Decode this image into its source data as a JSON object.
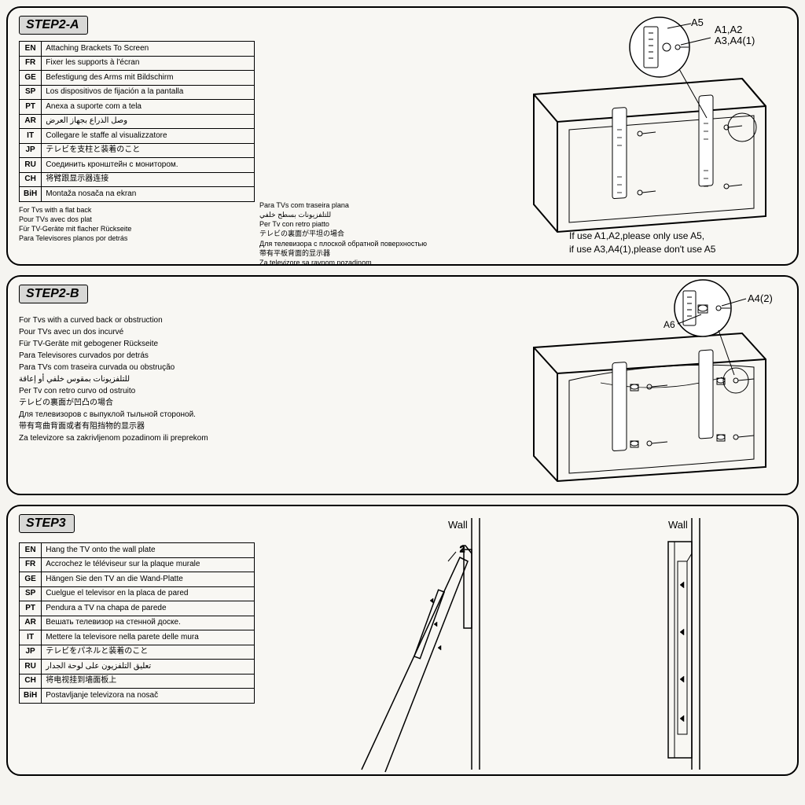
{
  "step2a": {
    "label": "STEP2-A",
    "rows": [
      {
        "code": "EN",
        "text": "Attaching Brackets To Screen"
      },
      {
        "code": "FR",
        "text": "Fixer les supports à l'écran"
      },
      {
        "code": "GE",
        "text": "Befestigung des Arms mit Bildschirm"
      },
      {
        "code": "SP",
        "text": "Los dispositivos de fijación a la pantalla"
      },
      {
        "code": "PT",
        "text": "Anexa a suporte com a tela"
      },
      {
        "code": "AR",
        "text": "وصل الذراع بجهاز العرض"
      },
      {
        "code": "IT",
        "text": "Collegare le staffe al visualizzatore"
      },
      {
        "code": "JP",
        "text": "テレビを支柱と装着のこと"
      },
      {
        "code": "RU",
        "text": "Соединить кронштейн с монитором."
      },
      {
        "code": "CH",
        "text": "将臂跟显示器连接"
      },
      {
        "code": "BiH",
        "text": "Montaža nosača na ekran"
      }
    ],
    "notes_col1": [
      "For Tvs with a flat back",
      "Pour TVs avec dos plat",
      "Für TV-Geräte mit flacher Rückseite",
      "Para Televisores planos por detrás"
    ],
    "notes_col2": [
      "Para TVs com traseira plana",
      "للتلفزيونات بسطح خلفي",
      "Per Tv con retro piatto",
      "テレビの裏面が平坦の場合",
      "Для телевизора с плоской обратной поверхностью",
      "带有平板背面的显示器",
      "Za televizore sa ravnom pozadinom"
    ],
    "labels": {
      "a5": "A5",
      "a12": "A1,A2",
      "a34": "A3,A4(1)"
    },
    "warn1": "If use A1,A2,please only use A5,",
    "warn2": "if use A3,A4(1),please don't use A5"
  },
  "step2b": {
    "label": "STEP2-B",
    "notes": [
      "For Tvs with a curved back or obstruction",
      "Pour TVs avec un dos incurvé",
      "Für TV-Geräte mit gebogener Rückseite",
      "Para Televisores curvados por detrás",
      "Para TVs com traseira curvada ou obstrução",
      "للتلفزيونات بمقوس خلفي أو إعاقة",
      "Per Tv con retro curvo od ostruito",
      "テレビの裏面が凹凸の場合",
      "Для телевизоров с выпуклой тыльной стороной.",
      "带有弯曲背面或者有阻挡物的显示器",
      "Za televizore sa zakrivljenom pozadinom ili preprekom"
    ],
    "labels": {
      "a42": "A4(2)",
      "a6": "A6"
    }
  },
  "step3": {
    "label": "STEP3",
    "rows": [
      {
        "code": "EN",
        "text": "Hang the TV onto the wall plate"
      },
      {
        "code": "FR",
        "text": "Accrochez le téléviseur sur la plaque murale"
      },
      {
        "code": "GE",
        "text": "Hängen Sie den TV an die Wand-Platte"
      },
      {
        "code": "SP",
        "text": "Cuelgue el televisor en la placa de pared"
      },
      {
        "code": "PT",
        "text": "Pendura a TV na chapa de parede"
      },
      {
        "code": "AR",
        "text": "Вешать телевизор на стенной доске."
      },
      {
        "code": "IT",
        "text": "Mettere la televisore nella parete delle mura"
      },
      {
        "code": "JP",
        "text": "テレビをパネルと装着のこと"
      },
      {
        "code": "RU",
        "text": "تعليق التلفزيون على لوحة الجدار"
      },
      {
        "code": "CH",
        "text": "将电视挂到墙面板上"
      },
      {
        "code": "BiH",
        "text": "Postavljanje televizora na nosač"
      }
    ],
    "wall": "Wall",
    "num2": "2"
  },
  "colors": {
    "border": "#000000",
    "bg": "#f8f7f3",
    "badge": "#d8d8d6"
  }
}
